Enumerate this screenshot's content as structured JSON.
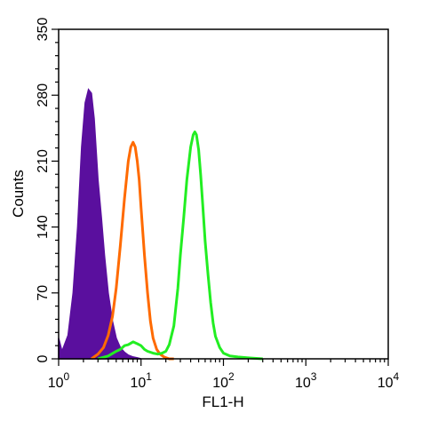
{
  "chart_data": {
    "type": "area",
    "xlabel": "FL1-H",
    "ylabel": "Counts",
    "x_scale": "log",
    "xlim": [
      1,
      10000
    ],
    "ylim": [
      0,
      350
    ],
    "x_ticks": [
      {
        "value": 1,
        "base": "10",
        "exp": "0"
      },
      {
        "value": 10,
        "base": "10",
        "exp": "1"
      },
      {
        "value": 100,
        "base": "10",
        "exp": "2"
      },
      {
        "value": 1000,
        "base": "10",
        "exp": "3"
      },
      {
        "value": 10000,
        "base": "10",
        "exp": "4"
      }
    ],
    "y_ticks": [
      "0",
      "70",
      "140",
      "210",
      "280",
      "350"
    ],
    "grid": false,
    "legend": "none",
    "series": [
      {
        "color": "#5a0f9e",
        "fill": "#5a0f9e",
        "x": [
          1.0,
          1.1,
          1.3,
          1.5,
          1.7,
          1.9,
          2.1,
          2.3,
          2.5,
          2.7,
          3.0,
          3.3,
          3.6,
          4.0,
          4.5,
          5.0,
          5.6,
          6.3,
          7.0,
          8.0,
          9.0,
          10.0
        ],
        "y": [
          22,
          8,
          25,
          70,
          140,
          225,
          272,
          286,
          282,
          255,
          190,
          150,
          110,
          70,
          40,
          22,
          12,
          7,
          4,
          2,
          1,
          0
        ]
      },
      {
        "color": "#ff6a00",
        "fill": "none",
        "x": [
          2.5,
          3.0,
          3.5,
          4.0,
          4.5,
          5.0,
          5.6,
          6.3,
          7.0,
          7.5,
          8.0,
          8.5,
          9.0,
          9.5,
          10.0,
          11.0,
          12.0,
          13.0,
          14.0,
          15.5,
          17.0,
          19.0,
          22.0,
          25.0
        ],
        "y": [
          0,
          5,
          12,
          25,
          45,
          75,
          120,
          170,
          210,
          225,
          230,
          225,
          210,
          190,
          160,
          110,
          70,
          40,
          22,
          10,
          5,
          2,
          0,
          0
        ]
      },
      {
        "color": "#22ee22",
        "fill": "none",
        "x": [
          3.0,
          4.0,
          5.0,
          5.6,
          6.3,
          7.0,
          8.0,
          9.0,
          10.0,
          11.0,
          12.0,
          14.0,
          16.0,
          18.0,
          20.0,
          22.0,
          25.0,
          28.0,
          30.0,
          33.0,
          36.0,
          40.0,
          43.0,
          45.0,
          47.0,
          50.0,
          53.0,
          56.0,
          60.0,
          65.0,
          70.0,
          75.0,
          80.0,
          90.0,
          100.0,
          120.0,
          150.0,
          200.0,
          300.0
        ],
        "y": [
          0,
          3,
          8,
          10,
          14,
          15,
          18,
          16,
          14,
          10,
          8,
          6,
          5,
          6,
          8,
          15,
          35,
          75,
          110,
          150,
          190,
          225,
          238,
          241,
          238,
          222,
          195,
          165,
          125,
          90,
          60,
          38,
          24,
          12,
          6,
          3,
          2,
          1,
          0
        ]
      }
    ]
  }
}
